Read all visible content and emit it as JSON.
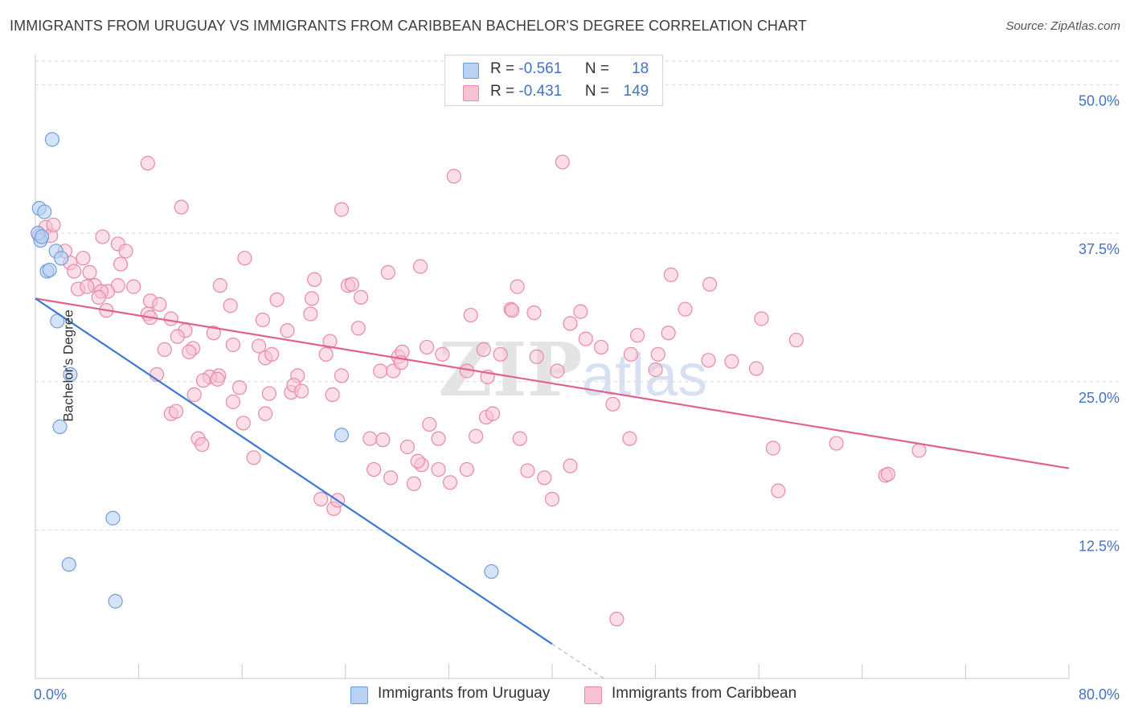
{
  "header": {
    "title": "IMMIGRANTS FROM URUGUAY VS IMMIGRANTS FROM CARIBBEAN BACHELOR'S DEGREE CORRELATION CHART",
    "source": "Source: ZipAtlas.com"
  },
  "watermark": {
    "zip": "ZIP",
    "atlas": "atlas"
  },
  "stats_legend": {
    "r_label": "R =",
    "n_label": "N =",
    "rows": [
      {
        "r": "-0.561",
        "n": "18"
      },
      {
        "r": "-0.431",
        "n": "149"
      }
    ]
  },
  "colors": {
    "uruguay_fill": "#b9d1f3",
    "uruguay_stroke": "#6f9fdc",
    "uruguay_line": "#3a78d4",
    "caribbean_fill": "#f7c3d3",
    "caribbean_stroke": "#e889a8",
    "caribbean_line": "#e0628e",
    "tick_label": "#4472c4",
    "grid": "#d9d9d9"
  },
  "chart_data": {
    "type": "scatter",
    "title": "IMMIGRANTS FROM URUGUAY VS IMMIGRANTS FROM CARIBBEAN BACHELOR'S DEGREE CORRELATION CHART",
    "xlabel": "",
    "ylabel": "Bachelor's Degree",
    "xlim": [
      0,
      80
    ],
    "ylim": [
      0,
      52
    ],
    "x_tick_labels": [
      "0.0%",
      "80.0%"
    ],
    "y_ticks": [
      12.5,
      25.0,
      37.5,
      50.0
    ],
    "y_tick_labels": [
      "12.5%",
      "25.0%",
      "37.5%",
      "50.0%"
    ],
    "grid": true,
    "legend_position": "bottom",
    "series": [
      {
        "name": "Immigrants from Uruguay",
        "color": "#6f9fdc",
        "points": [
          [
            0.3,
            39.6
          ],
          [
            0.7,
            39.3
          ],
          [
            0.4,
            36.9
          ],
          [
            1.3,
            45.4
          ],
          [
            1.6,
            36.0
          ],
          [
            2.0,
            35.4
          ],
          [
            0.9,
            34.3
          ],
          [
            1.1,
            34.4
          ],
          [
            1.7,
            30.1
          ],
          [
            2.7,
            25.6
          ],
          [
            1.9,
            21.2
          ],
          [
            23.7,
            20.5
          ],
          [
            6.0,
            13.5
          ],
          [
            2.6,
            9.6
          ],
          [
            35.3,
            9.0
          ],
          [
            6.2,
            6.5
          ],
          [
            0.2,
            37.5
          ],
          [
            0.5,
            37.2
          ]
        ],
        "trend": {
          "x": [
            0,
            40
          ],
          "y": [
            32.0,
            2.9
          ],
          "dashed_extension_to": [
            44,
            0
          ]
        }
      },
      {
        "name": "Immigrants from Caribbean",
        "color": "#e889a8",
        "points": [
          [
            0.3,
            37.3
          ],
          [
            0.8,
            38.0
          ],
          [
            1.2,
            37.3
          ],
          [
            1.4,
            38.2
          ],
          [
            2.3,
            36.0
          ],
          [
            2.7,
            35.0
          ],
          [
            3.7,
            35.4
          ],
          [
            4.6,
            33.1
          ],
          [
            3.0,
            34.3
          ],
          [
            5.2,
            37.2
          ],
          [
            6.4,
            36.6
          ],
          [
            7.0,
            36.0
          ],
          [
            6.6,
            34.9
          ],
          [
            6.4,
            33.1
          ],
          [
            7.6,
            33.0
          ],
          [
            5.6,
            32.6
          ],
          [
            4.2,
            34.2
          ],
          [
            3.3,
            32.8
          ],
          [
            4.0,
            33.0
          ],
          [
            5.1,
            32.6
          ],
          [
            4.9,
            32.1
          ],
          [
            5.5,
            31.0
          ],
          [
            8.9,
            31.8
          ],
          [
            9.6,
            31.5
          ],
          [
            8.7,
            30.7
          ],
          [
            8.9,
            30.4
          ],
          [
            11.3,
            39.7
          ],
          [
            8.7,
            43.4
          ],
          [
            10.5,
            30.3
          ],
          [
            11.6,
            29.3
          ],
          [
            11.0,
            28.8
          ],
          [
            12.2,
            27.8
          ],
          [
            10.0,
            27.7
          ],
          [
            11.9,
            27.5
          ],
          [
            9.4,
            25.6
          ],
          [
            14.2,
            25.5
          ],
          [
            13.5,
            25.4
          ],
          [
            13.0,
            25.1
          ],
          [
            14.1,
            25.2
          ],
          [
            12.3,
            23.9
          ],
          [
            10.5,
            22.3
          ],
          [
            10.9,
            22.5
          ],
          [
            12.6,
            20.2
          ],
          [
            12.9,
            19.7
          ],
          [
            13.8,
            29.1
          ],
          [
            14.3,
            33.1
          ],
          [
            15.1,
            31.4
          ],
          [
            15.3,
            28.1
          ],
          [
            15.3,
            23.3
          ],
          [
            16.2,
            35.4
          ],
          [
            16.1,
            21.5
          ],
          [
            15.8,
            24.5
          ],
          [
            16.9,
            18.6
          ],
          [
            17.3,
            28.0
          ],
          [
            17.6,
            30.2
          ],
          [
            17.8,
            27.0
          ],
          [
            18.3,
            27.3
          ],
          [
            17.8,
            22.3
          ],
          [
            18.1,
            24.0
          ],
          [
            18.7,
            31.9
          ],
          [
            19.5,
            29.3
          ],
          [
            19.8,
            24.1
          ],
          [
            20.3,
            25.5
          ],
          [
            20.0,
            24.7
          ],
          [
            20.6,
            24.2
          ],
          [
            21.3,
            30.7
          ],
          [
            21.4,
            32.0
          ],
          [
            21.6,
            33.6
          ],
          [
            22.5,
            27.3
          ],
          [
            22.8,
            28.4
          ],
          [
            23.0,
            23.9
          ],
          [
            22.1,
            15.1
          ],
          [
            23.1,
            14.3
          ],
          [
            23.4,
            15.0
          ],
          [
            23.7,
            25.5
          ],
          [
            23.7,
            39.5
          ],
          [
            24.2,
            33.1
          ],
          [
            24.5,
            33.2
          ],
          [
            25.0,
            29.5
          ],
          [
            25.2,
            32.1
          ],
          [
            25.9,
            20.2
          ],
          [
            26.2,
            17.6
          ],
          [
            26.7,
            25.9
          ],
          [
            26.9,
            20.1
          ],
          [
            27.5,
            16.9
          ],
          [
            27.7,
            25.9
          ],
          [
            27.3,
            34.2
          ],
          [
            28.1,
            27.1
          ],
          [
            28.4,
            27.5
          ],
          [
            28.3,
            26.6
          ],
          [
            28.8,
            19.5
          ],
          [
            29.3,
            16.4
          ],
          [
            29.9,
            18.0
          ],
          [
            29.6,
            18.3
          ],
          [
            29.8,
            34.7
          ],
          [
            30.3,
            27.9
          ],
          [
            30.5,
            21.4
          ],
          [
            31.2,
            20.2
          ],
          [
            31.2,
            17.6
          ],
          [
            31.5,
            27.3
          ],
          [
            32.1,
            16.5
          ],
          [
            32.4,
            42.3
          ],
          [
            33.4,
            17.6
          ],
          [
            33.4,
            25.9
          ],
          [
            33.7,
            30.6
          ],
          [
            34.1,
            20.4
          ],
          [
            34.7,
            27.7
          ],
          [
            35.0,
            25.4
          ],
          [
            34.9,
            22.0
          ],
          [
            35.4,
            22.3
          ],
          [
            36.0,
            27.3
          ],
          [
            36.8,
            31.1
          ],
          [
            36.9,
            31.0
          ],
          [
            37.3,
            33.0
          ],
          [
            37.5,
            20.2
          ],
          [
            38.1,
            17.5
          ],
          [
            38.6,
            30.8
          ],
          [
            38.8,
            27.1
          ],
          [
            39.4,
            16.9
          ],
          [
            40.0,
            15.1
          ],
          [
            40.4,
            25.9
          ],
          [
            40.8,
            43.5
          ],
          [
            41.4,
            17.9
          ],
          [
            41.4,
            29.9
          ],
          [
            42.2,
            30.9
          ],
          [
            42.6,
            28.6
          ],
          [
            43.8,
            27.9
          ],
          [
            44.7,
            23.1
          ],
          [
            45.0,
            5.0
          ],
          [
            46.0,
            20.2
          ],
          [
            46.1,
            27.3
          ],
          [
            46.6,
            28.9
          ],
          [
            48.0,
            26.0
          ],
          [
            48.2,
            27.3
          ],
          [
            49.0,
            29.1
          ],
          [
            49.2,
            34.0
          ],
          [
            50.3,
            31.1
          ],
          [
            52.1,
            26.8
          ],
          [
            52.2,
            33.2
          ],
          [
            53.9,
            26.7
          ],
          [
            55.8,
            26.1
          ],
          [
            56.2,
            30.3
          ],
          [
            57.1,
            19.4
          ],
          [
            57.5,
            15.8
          ],
          [
            58.9,
            28.5
          ],
          [
            62.0,
            19.8
          ],
          [
            65.8,
            17.1
          ],
          [
            66.0,
            17.2
          ],
          [
            68.4,
            19.2
          ]
        ],
        "trend": {
          "x": [
            0,
            80
          ],
          "y": [
            32.0,
            17.7
          ]
        }
      }
    ]
  }
}
